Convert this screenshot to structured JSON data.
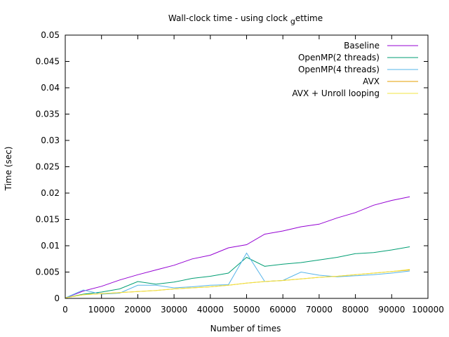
{
  "chart_data": {
    "type": "line",
    "title": "Wall-clock time - using clock_gettime",
    "xlabel": "Number of times",
    "ylabel": "Time (sec)",
    "xlim": [
      0,
      100000
    ],
    "ylim": [
      0,
      0.05
    ],
    "x_ticks": [
      "0",
      "10000",
      "20000",
      "30000",
      "40000",
      "50000",
      "60000",
      "70000",
      "80000",
      "90000",
      "100000"
    ],
    "y_ticks": [
      "0",
      "0.005",
      "0.01",
      "0.015",
      "0.02",
      "0.025",
      "0.03",
      "0.035",
      "0.04",
      "0.045",
      "0.05"
    ],
    "grid": false,
    "legend_position": "top-right",
    "x": [
      0,
      5000,
      10000,
      15000,
      20000,
      25000,
      30000,
      35000,
      40000,
      45000,
      50000,
      55000,
      60000,
      65000,
      70000,
      75000,
      80000,
      85000,
      90000,
      95000
    ],
    "series": [
      {
        "name": "Baseline",
        "color": "#9400d3",
        "values": [
          0.0001,
          0.0014,
          0.0023,
          0.0035,
          0.0045,
          0.0054,
          0.0063,
          0.0075,
          0.0082,
          0.0096,
          0.0102,
          0.0122,
          0.0128,
          0.0136,
          0.0141,
          0.0153,
          0.0163,
          0.0177,
          0.0186,
          0.0193
        ]
      },
      {
        "name": "OpenMP(2 threads)",
        "color": "#009e73",
        "values": [
          0.0001,
          0.0008,
          0.0012,
          0.0018,
          0.0032,
          0.0027,
          0.0031,
          0.0038,
          0.0042,
          0.0048,
          0.0078,
          0.0061,
          0.0065,
          0.0068,
          0.0073,
          0.0078,
          0.0085,
          0.0087,
          0.0092,
          0.0098
        ]
      },
      {
        "name": "OpenMP(4 threads)",
        "color": "#56b4e9",
        "values": [
          0.0001,
          0.0016,
          0.0008,
          0.001,
          0.0025,
          0.0025,
          0.002,
          0.0022,
          0.0025,
          0.0026,
          0.0086,
          0.0032,
          0.0034,
          0.005,
          0.0044,
          0.0041,
          0.0043,
          0.0045,
          0.0048,
          0.0052
        ]
      },
      {
        "name": "AVX",
        "color": "#e69f00",
        "values": [
          0.0001,
          0.0007,
          0.0009,
          0.0011,
          0.0013,
          0.0015,
          0.0018,
          0.002,
          0.0022,
          0.0025,
          0.0029,
          0.0032,
          0.0034,
          0.0037,
          0.004,
          0.0042,
          0.0045,
          0.0048,
          0.0051,
          0.0054
        ]
      },
      {
        "name": "AVX + Unroll looping",
        "color": "#f0e442",
        "values": [
          0.0001,
          0.0007,
          0.0009,
          0.0011,
          0.0013,
          0.0015,
          0.0018,
          0.002,
          0.0022,
          0.0025,
          0.0029,
          0.0032,
          0.0034,
          0.0037,
          0.004,
          0.0042,
          0.0045,
          0.0048,
          0.0051,
          0.0055
        ]
      }
    ]
  }
}
